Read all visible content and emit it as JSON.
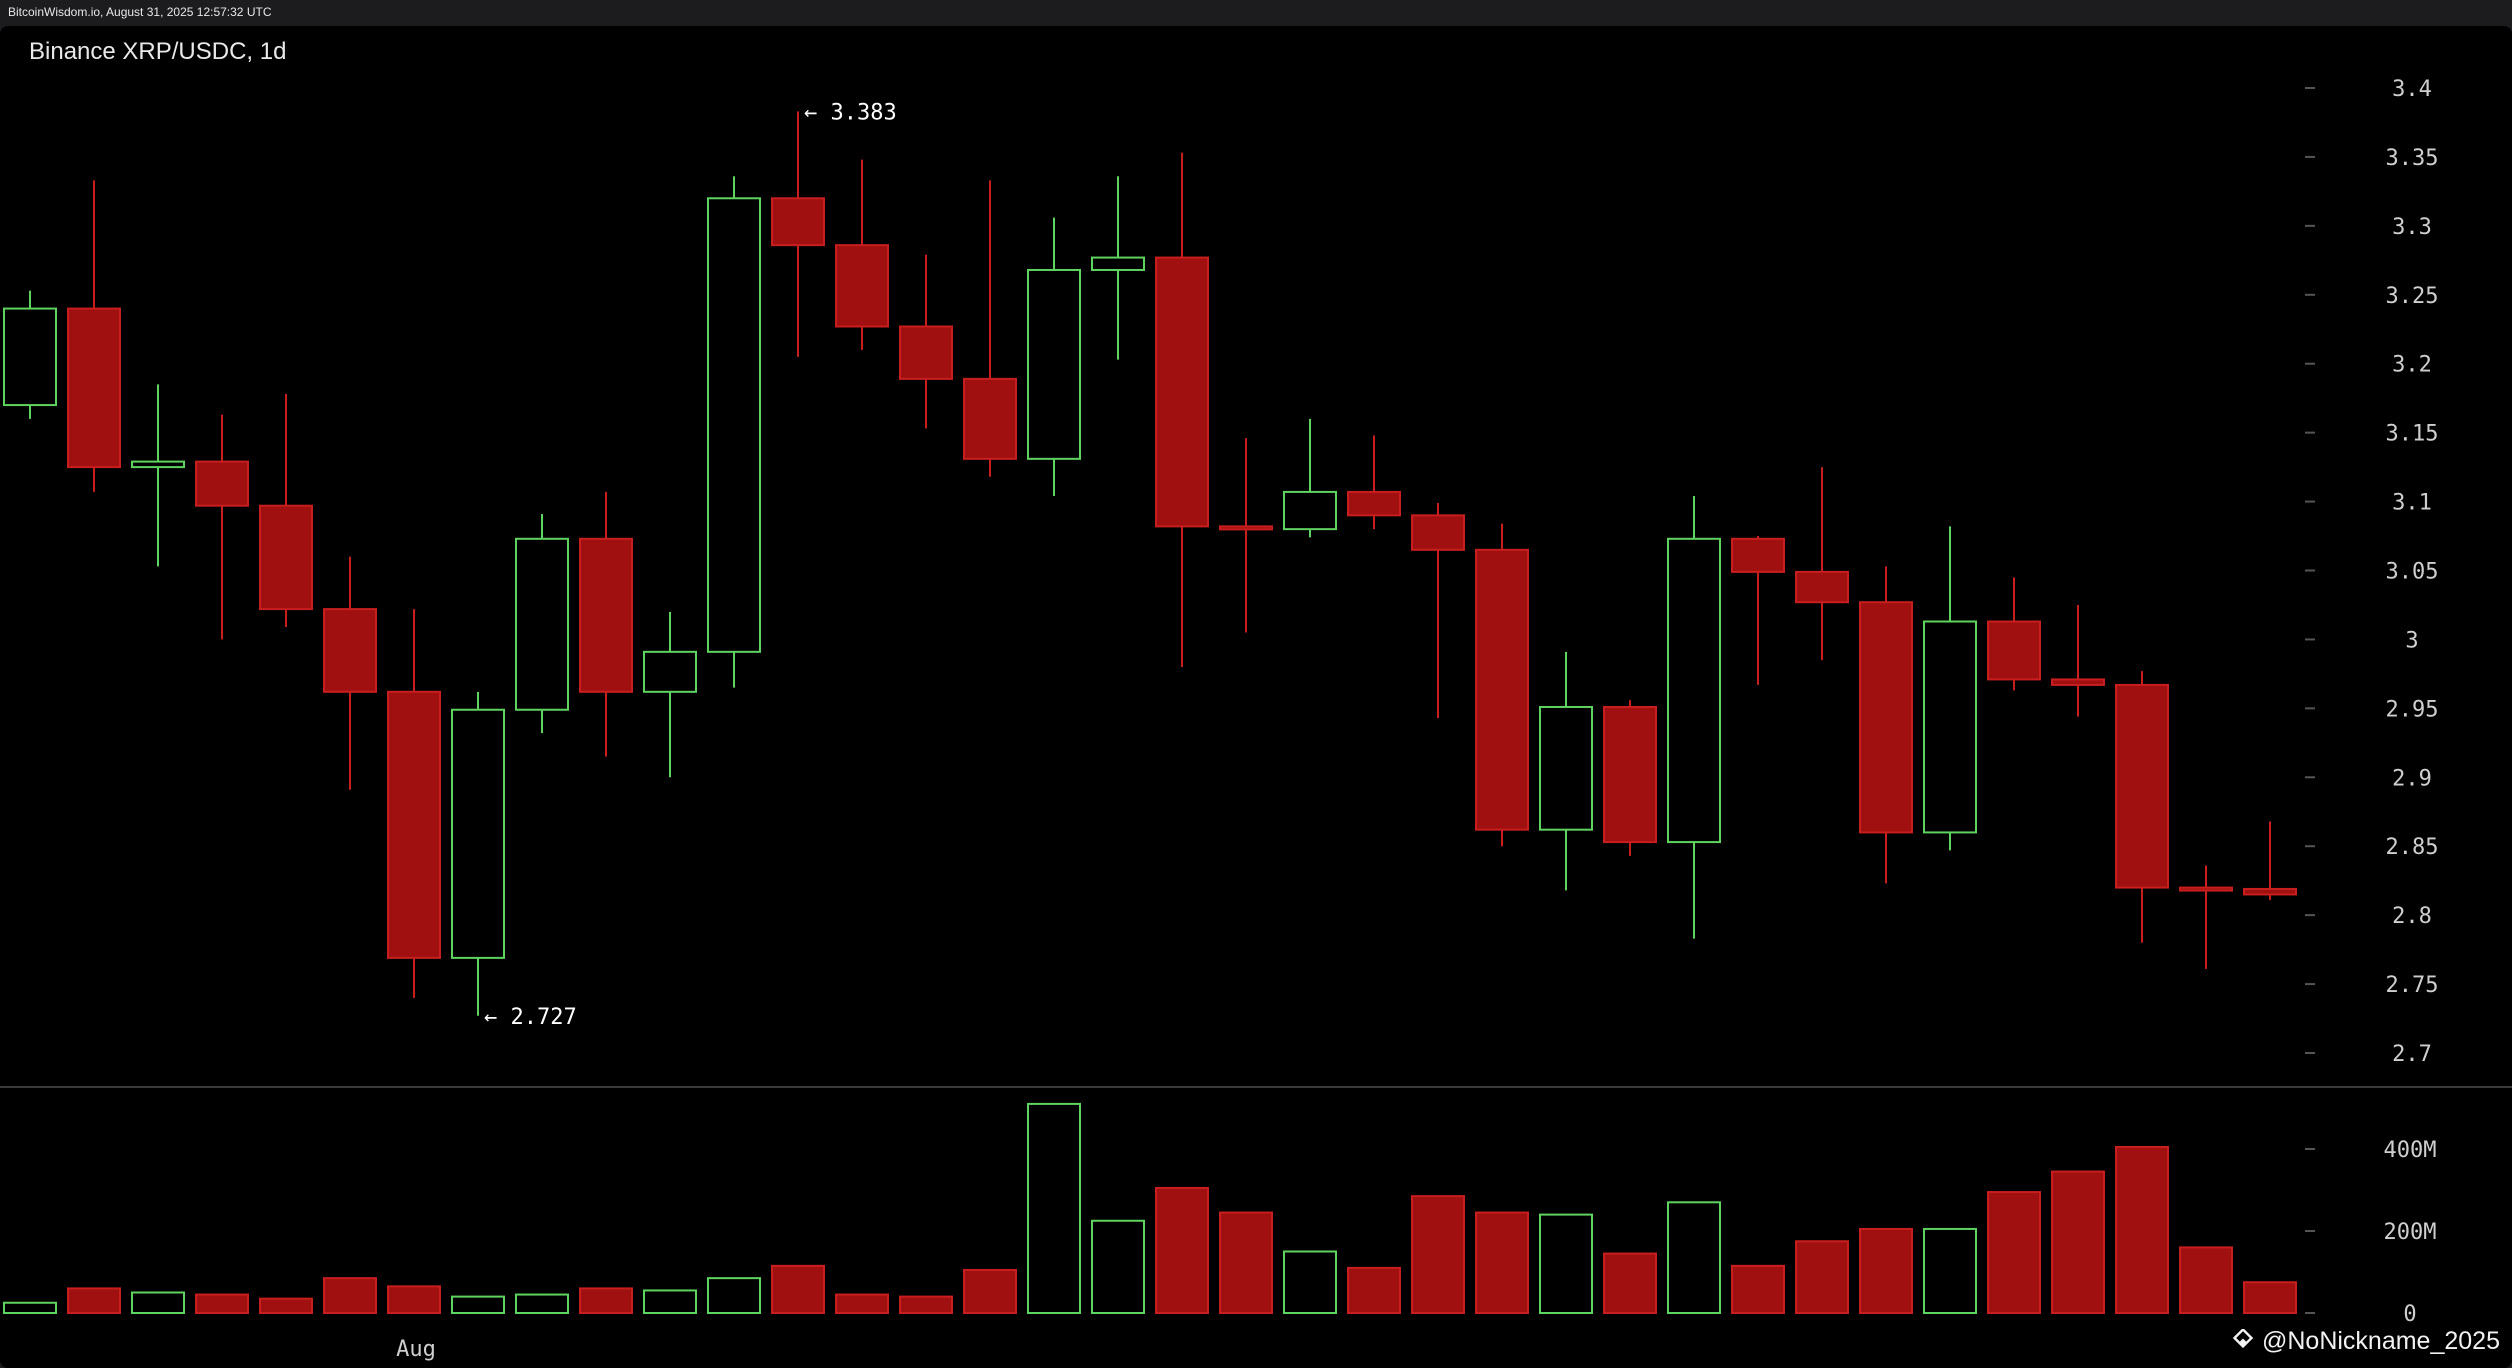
{
  "header": {
    "source_stamp": "BitcoinWisdom.io, August 31, 2025 12:57:32 UTC",
    "chart_title": "Binance XRP/USDC, 1d"
  },
  "watermark": {
    "text": "@NoNickname_2025",
    "icon": "binance-square-icon"
  },
  "colors": {
    "up": "#5fd35f",
    "down": "#a01010",
    "down_edge": "#c81e1e",
    "axis_text": "#cfcfcf",
    "background": "#000000"
  },
  "chart_data": [
    {
      "type": "candlestick",
      "title": "Binance XRP/USDC, 1d",
      "y_axis_side": "right",
      "ylim": [
        2.68,
        3.42
      ],
      "yticks": [
        "3.4",
        "3.35",
        "3.3",
        "3.25",
        "3.2",
        "3.15",
        "3.1",
        "3.05",
        "3",
        "2.95",
        "2.9",
        "2.85",
        "2.8",
        "2.75",
        "2.7"
      ],
      "xticks": [
        {
          "index": 6,
          "label": "Aug"
        }
      ],
      "annotations": [
        {
          "index": 12,
          "value": 3.383,
          "label": "← 3.383"
        },
        {
          "index": 7,
          "value": 2.727,
          "label": "← 2.727"
        }
      ],
      "candles": [
        {
          "o": 3.17,
          "h": 3.253,
          "l": 3.16,
          "c": 3.24
        },
        {
          "o": 3.24,
          "h": 3.333,
          "l": 3.107,
          "c": 3.125
        },
        {
          "o": 3.125,
          "h": 3.185,
          "l": 3.053,
          "c": 3.129
        },
        {
          "o": 3.129,
          "h": 3.163,
          "l": 3.0,
          "c": 3.097
        },
        {
          "o": 3.097,
          "h": 3.178,
          "l": 3.009,
          "c": 3.022
        },
        {
          "o": 3.022,
          "h": 3.06,
          "l": 2.891,
          "c": 2.962
        },
        {
          "o": 2.962,
          "h": 3.022,
          "l": 2.74,
          "c": 2.769
        },
        {
          "o": 2.769,
          "h": 2.962,
          "l": 2.727,
          "c": 2.949
        },
        {
          "o": 2.949,
          "h": 3.091,
          "l": 2.932,
          "c": 3.073
        },
        {
          "o": 3.073,
          "h": 3.107,
          "l": 2.915,
          "c": 2.962
        },
        {
          "o": 2.962,
          "h": 3.02,
          "l": 2.9,
          "c": 2.991
        },
        {
          "o": 2.991,
          "h": 3.336,
          "l": 2.965,
          "c": 3.32
        },
        {
          "o": 3.32,
          "h": 3.383,
          "l": 3.205,
          "c": 3.286
        },
        {
          "o": 3.286,
          "h": 3.348,
          "l": 3.21,
          "c": 3.227
        },
        {
          "o": 3.227,
          "h": 3.279,
          "l": 3.153,
          "c": 3.189
        },
        {
          "o": 3.189,
          "h": 3.333,
          "l": 3.118,
          "c": 3.131
        },
        {
          "o": 3.131,
          "h": 3.306,
          "l": 3.104,
          "c": 3.268
        },
        {
          "o": 3.268,
          "h": 3.336,
          "l": 3.203,
          "c": 3.277
        },
        {
          "o": 3.277,
          "h": 3.353,
          "l": 2.98,
          "c": 3.082
        },
        {
          "o": 3.082,
          "h": 3.146,
          "l": 3.005,
          "c": 3.08
        },
        {
          "o": 3.08,
          "h": 3.16,
          "l": 3.074,
          "c": 3.107
        },
        {
          "o": 3.107,
          "h": 3.148,
          "l": 3.08,
          "c": 3.09
        },
        {
          "o": 3.09,
          "h": 3.099,
          "l": 2.943,
          "c": 3.065
        },
        {
          "o": 3.065,
          "h": 3.084,
          "l": 2.85,
          "c": 2.862
        },
        {
          "o": 2.862,
          "h": 2.991,
          "l": 2.818,
          "c": 2.951
        },
        {
          "o": 2.951,
          "h": 2.956,
          "l": 2.843,
          "c": 2.853
        },
        {
          "o": 2.853,
          "h": 3.104,
          "l": 2.783,
          "c": 3.073
        },
        {
          "o": 3.073,
          "h": 3.075,
          "l": 2.967,
          "c": 3.049
        },
        {
          "o": 3.049,
          "h": 3.125,
          "l": 2.985,
          "c": 3.027
        },
        {
          "o": 3.027,
          "h": 3.053,
          "l": 2.823,
          "c": 2.86
        },
        {
          "o": 2.86,
          "h": 3.082,
          "l": 2.847,
          "c": 3.013
        },
        {
          "o": 3.013,
          "h": 3.045,
          "l": 2.963,
          "c": 2.971
        },
        {
          "o": 2.971,
          "h": 3.025,
          "l": 2.944,
          "c": 2.967
        },
        {
          "o": 2.967,
          "h": 2.977,
          "l": 2.78,
          "c": 2.82
        },
        {
          "o": 2.82,
          "h": 2.836,
          "l": 2.761,
          "c": 2.819
        },
        {
          "o": 2.819,
          "h": 2.868,
          "l": 2.811,
          "c": 2.815
        }
      ]
    },
    {
      "type": "bar",
      "title": "",
      "y_axis_side": "right",
      "ylim": [
        0,
        520
      ],
      "yticks": [
        {
          "value": 400,
          "label": "400M"
        },
        {
          "value": 200,
          "label": "200M"
        },
        {
          "value": 0,
          "label": "0"
        }
      ],
      "unit": "M",
      "values": [
        25,
        60,
        50,
        45,
        35,
        85,
        65,
        40,
        45,
        60,
        55,
        85,
        115,
        45,
        40,
        105,
        510,
        225,
        305,
        245,
        150,
        110,
        285,
        245,
        240,
        145,
        270,
        115,
        175,
        205,
        205,
        295,
        345,
        405,
        160,
        75
      ]
    }
  ]
}
